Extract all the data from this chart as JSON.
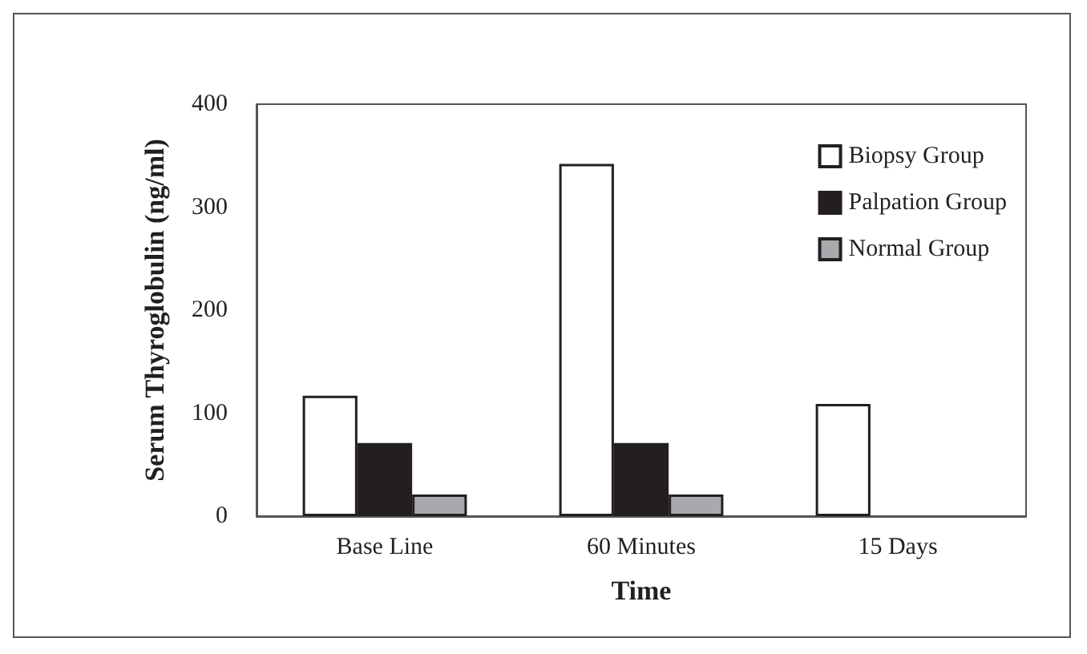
{
  "chart_data": {
    "type": "bar",
    "xlabel": "Time",
    "ylabel": "Serum Thyroglobulin (ng/ml)",
    "categories": [
      "Base Line",
      "60 Minutes",
      "15 Days"
    ],
    "series": [
      {
        "name": "Biopsy Group",
        "color": "#ffffff",
        "values": [
          117,
          342,
          109
        ]
      },
      {
        "name": "Palpation Group",
        "color": "#231f20",
        "values": [
          71,
          71,
          null
        ]
      },
      {
        "name": "Normal Group",
        "color": "#a7a9ac",
        "values": [
          21,
          21,
          null
        ]
      }
    ],
    "ylim": [
      0,
      400
    ],
    "yticks": [
      0,
      100,
      200,
      300,
      400
    ],
    "grid": false,
    "legend": "top right"
  }
}
